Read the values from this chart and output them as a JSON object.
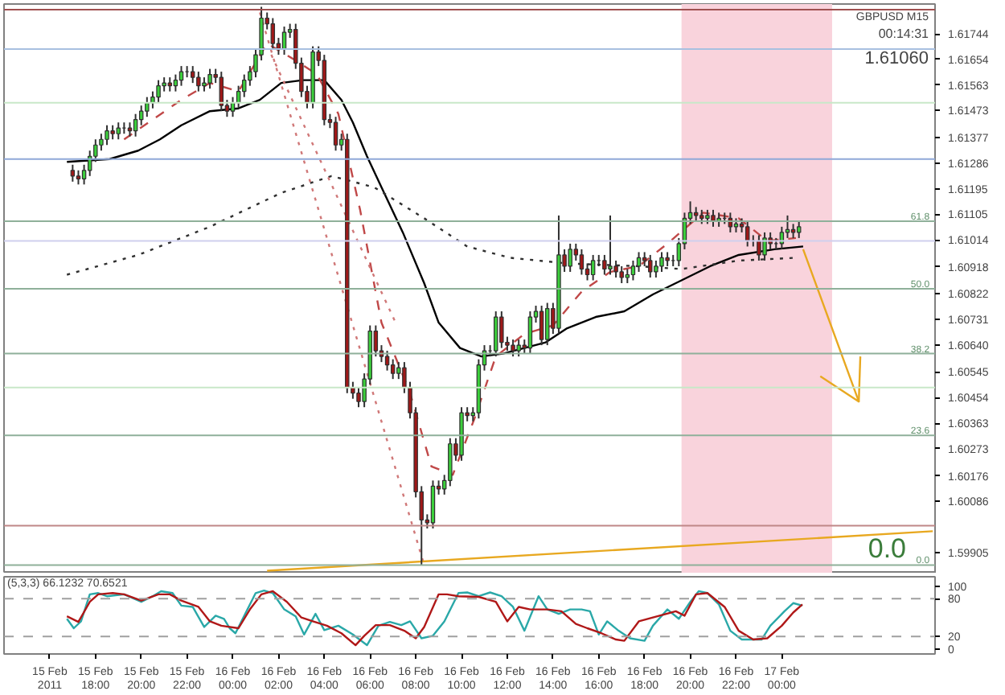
{
  "chart_data": [
    {
      "type": "candlestick",
      "title": "GBPUSD M15",
      "tick_labels": "y",
      "x": [
        "2011-02-15T17:00",
        "2011-02-15T17:15",
        "2011-02-15T17:30",
        "2011-02-15T17:45",
        "2011-02-15T18:00",
        "2011-02-15T18:15",
        "2011-02-15T18:30",
        "2011-02-15T18:45",
        "2011-02-15T19:00",
        "2011-02-15T19:15",
        "2011-02-15T19:30",
        "2011-02-15T19:45",
        "2011-02-15T20:00",
        "2011-02-15T20:15",
        "2011-02-15T20:30",
        "2011-02-15T20:45",
        "2011-02-15T21:00",
        "2011-02-15T21:15",
        "2011-02-15T21:30",
        "2011-02-15T21:45",
        "2011-02-15T22:00",
        "2011-02-15T22:15",
        "2011-02-15T22:30",
        "2011-02-15T22:45",
        "2011-02-15T23:00",
        "2011-02-15T23:15",
        "2011-02-15T23:30",
        "2011-02-15T23:45",
        "2011-02-16T00:00",
        "2011-02-16T00:15",
        "2011-02-16T00:30",
        "2011-02-16T00:45",
        "2011-02-16T01:00",
        "2011-02-16T01:15",
        "2011-02-16T01:30",
        "2011-02-16T01:45",
        "2011-02-16T02:00",
        "2011-02-16T02:15",
        "2011-02-16T02:30",
        "2011-02-16T02:45",
        "2011-02-16T03:00",
        "2011-02-16T03:15",
        "2011-02-16T03:30",
        "2011-02-16T03:45",
        "2011-02-16T04:00",
        "2011-02-16T04:15",
        "2011-02-16T04:30",
        "2011-02-16T04:45",
        "2011-02-16T05:00",
        "2011-02-16T05:15",
        "2011-02-16T05:30",
        "2011-02-16T05:45",
        "2011-02-16T06:00",
        "2011-02-16T06:15",
        "2011-02-16T06:30",
        "2011-02-16T06:45",
        "2011-02-16T07:00",
        "2011-02-16T07:15",
        "2011-02-16T07:30",
        "2011-02-16T07:45",
        "2011-02-16T08:00",
        "2011-02-16T08:15",
        "2011-02-16T08:30",
        "2011-02-16T08:45",
        "2011-02-16T09:00",
        "2011-02-16T09:15",
        "2011-02-16T09:30",
        "2011-02-16T09:45",
        "2011-02-16T10:00",
        "2011-02-16T10:15",
        "2011-02-16T10:30",
        "2011-02-16T10:45",
        "2011-02-16T11:00",
        "2011-02-16T11:15",
        "2011-02-16T11:30",
        "2011-02-16T11:45",
        "2011-02-16T12:00",
        "2011-02-16T12:15",
        "2011-02-16T12:30",
        "2011-02-16T12:45",
        "2011-02-16T13:00",
        "2011-02-16T13:15",
        "2011-02-16T13:30",
        "2011-02-16T13:45",
        "2011-02-16T14:00",
        "2011-02-16T14:15",
        "2011-02-16T14:30",
        "2011-02-16T14:45",
        "2011-02-16T15:00",
        "2011-02-16T15:15",
        "2011-02-16T15:30",
        "2011-02-16T15:45",
        "2011-02-16T16:00",
        "2011-02-16T16:15",
        "2011-02-16T16:30",
        "2011-02-16T16:45",
        "2011-02-16T17:00",
        "2011-02-16T17:15",
        "2011-02-16T17:30",
        "2011-02-16T17:45",
        "2011-02-16T18:00",
        "2011-02-16T18:15",
        "2011-02-16T18:30",
        "2011-02-16T18:45",
        "2011-02-16T19:00",
        "2011-02-16T19:15",
        "2011-02-16T19:30",
        "2011-02-16T19:45",
        "2011-02-16T20:00",
        "2011-02-16T20:15",
        "2011-02-16T20:30",
        "2011-02-16T20:45",
        "2011-02-16T21:00",
        "2011-02-16T21:15",
        "2011-02-16T21:30",
        "2011-02-16T21:45",
        "2011-02-16T22:00",
        "2011-02-16T22:15",
        "2011-02-16T22:30",
        "2011-02-16T22:45",
        "2011-02-16T23:00",
        "2011-02-16T23:15",
        "2011-02-16T23:30",
        "2011-02-16T23:45",
        "2011-02-17T00:00",
        "2011-02-17T00:15",
        "2011-02-17T00:30",
        "2011-02-17T00:45"
      ],
      "ohlc": [
        [
          1.6126,
          1.6128,
          1.6122,
          1.6124
        ],
        [
          1.6124,
          1.6126,
          1.6121,
          1.6123
        ],
        [
          1.6123,
          1.6128,
          1.6121,
          1.6126
        ],
        [
          1.6126,
          1.6133,
          1.6124,
          1.6131
        ],
        [
          1.6131,
          1.6137,
          1.6129,
          1.6135
        ],
        [
          1.6135,
          1.6139,
          1.6133,
          1.6137
        ],
        [
          1.6137,
          1.6142,
          1.6135,
          1.614
        ],
        [
          1.614,
          1.6142,
          1.6137,
          1.6139
        ],
        [
          1.6139,
          1.6143,
          1.6137,
          1.6141
        ],
        [
          1.6141,
          1.6143,
          1.6139,
          1.6141
        ],
        [
          1.6141,
          1.6143,
          1.6138,
          1.614
        ],
        [
          1.614,
          1.6146,
          1.6138,
          1.6144
        ],
        [
          1.6144,
          1.6149,
          1.6142,
          1.6147
        ],
        [
          1.6147,
          1.6152,
          1.6145,
          1.615
        ],
        [
          1.615,
          1.6154,
          1.6148,
          1.6152
        ],
        [
          1.6152,
          1.6158,
          1.615,
          1.6156
        ],
        [
          1.6156,
          1.6159,
          1.6154,
          1.6157
        ],
        [
          1.6157,
          1.6159,
          1.6154,
          1.6156
        ],
        [
          1.6156,
          1.616,
          1.6154,
          1.6158
        ],
        [
          1.6158,
          1.6163,
          1.6156,
          1.6161
        ],
        [
          1.6161,
          1.6163,
          1.6159,
          1.6161
        ],
        [
          1.6161,
          1.6163,
          1.6157,
          1.6159
        ],
        [
          1.6159,
          1.6161,
          1.6154,
          1.6156
        ],
        [
          1.6156,
          1.6159,
          1.6154,
          1.6157
        ],
        [
          1.6157,
          1.6162,
          1.6155,
          1.616
        ],
        [
          1.616,
          1.6162,
          1.6157,
          1.6159
        ],
        [
          1.6159,
          1.6161,
          1.6147,
          1.6149
        ],
        [
          1.6149,
          1.6151,
          1.6145,
          1.6147
        ],
        [
          1.6147,
          1.6152,
          1.6145,
          1.615
        ],
        [
          1.615,
          1.6156,
          1.6148,
          1.6154
        ],
        [
          1.6154,
          1.616,
          1.6152,
          1.6158
        ],
        [
          1.6158,
          1.6163,
          1.6156,
          1.6161
        ],
        [
          1.6161,
          1.6169,
          1.6159,
          1.6167
        ],
        [
          1.6167,
          1.6184,
          1.6165,
          1.618
        ],
        [
          1.618,
          1.6182,
          1.6176,
          1.6178
        ],
        [
          1.6178,
          1.618,
          1.6169,
          1.6171
        ],
        [
          1.6171,
          1.6173,
          1.6167,
          1.6169
        ],
        [
          1.6169,
          1.6177,
          1.6167,
          1.6175
        ],
        [
          1.6175,
          1.6178,
          1.6173,
          1.6176
        ],
        [
          1.6176,
          1.6178,
          1.6162,
          1.6164
        ],
        [
          1.6164,
          1.6166,
          1.6152,
          1.6154
        ],
        [
          1.6154,
          1.6156,
          1.6148,
          1.615
        ],
        [
          1.615,
          1.617,
          1.6148,
          1.6168
        ],
        [
          1.6168,
          1.617,
          1.6163,
          1.6165
        ],
        [
          1.6165,
          1.6167,
          1.6142,
          1.6144
        ],
        [
          1.6144,
          1.6146,
          1.6141,
          1.6143
        ],
        [
          1.6143,
          1.6145,
          1.6133,
          1.6135
        ],
        [
          1.6135,
          1.6139,
          1.6133,
          1.6137
        ],
        [
          1.6137,
          1.6139,
          1.6047,
          1.6049
        ],
        [
          1.6049,
          1.6051,
          1.6045,
          1.6047
        ],
        [
          1.6047,
          1.6049,
          1.6042,
          1.6044
        ],
        [
          1.6044,
          1.6054,
          1.6042,
          1.6052
        ],
        [
          1.6052,
          1.6071,
          1.605,
          1.6069
        ],
        [
          1.6069,
          1.6071,
          1.606,
          1.6062
        ],
        [
          1.6062,
          1.6064,
          1.6058,
          1.606
        ],
        [
          1.606,
          1.6062,
          1.6055,
          1.6057
        ],
        [
          1.6057,
          1.6059,
          1.6052,
          1.6054
        ],
        [
          1.6054,
          1.6058,
          1.6052,
          1.6056
        ],
        [
          1.6056,
          1.6058,
          1.6047,
          1.6049
        ],
        [
          1.6049,
          1.6051,
          1.6038,
          1.604
        ],
        [
          1.604,
          1.6042,
          1.601,
          1.6012
        ],
        [
          1.6012,
          1.6014,
          1.5986,
          1.6002
        ],
        [
          1.6002,
          1.6004,
          1.5999,
          1.6001
        ],
        [
          1.6001,
          1.6016,
          1.5999,
          1.6014
        ],
        [
          1.6014,
          1.6016,
          1.6011,
          1.6013
        ],
        [
          1.6013,
          1.6018,
          1.6011,
          1.6016
        ],
        [
          1.6016,
          1.6031,
          1.6014,
          1.6029
        ],
        [
          1.6029,
          1.6031,
          1.6023,
          1.6025
        ],
        [
          1.6025,
          1.6042,
          1.6023,
          1.604
        ],
        [
          1.604,
          1.6042,
          1.6037,
          1.6039
        ],
        [
          1.6039,
          1.6042,
          1.6037,
          1.604
        ],
        [
          1.604,
          1.6059,
          1.6038,
          1.6057
        ],
        [
          1.6057,
          1.6064,
          1.6055,
          1.6062
        ],
        [
          1.6062,
          1.6064,
          1.606,
          1.6062
        ],
        [
          1.6062,
          1.6076,
          1.606,
          1.6074
        ],
        [
          1.6074,
          1.6076,
          1.6063,
          1.6065
        ],
        [
          1.6065,
          1.6067,
          1.6062,
          1.6064
        ],
        [
          1.6064,
          1.6066,
          1.606,
          1.6062
        ],
        [
          1.6062,
          1.6066,
          1.606,
          1.6064
        ],
        [
          1.6064,
          1.6066,
          1.6061,
          1.6063
        ],
        [
          1.6063,
          1.6076,
          1.6061,
          1.6074
        ],
        [
          1.6074,
          1.6078,
          1.6072,
          1.6076
        ],
        [
          1.6076,
          1.6078,
          1.6064,
          1.6066
        ],
        [
          1.6066,
          1.6079,
          1.6064,
          1.6077
        ],
        [
          1.6077,
          1.6079,
          1.6068,
          1.607
        ],
        [
          1.607,
          1.611,
          1.6068,
          1.6096
        ],
        [
          1.6096,
          1.6098,
          1.609,
          1.6092
        ],
        [
          1.6092,
          1.61,
          1.609,
          1.6098
        ],
        [
          1.6098,
          1.61,
          1.6094,
          1.6096
        ],
        [
          1.6096,
          1.6098,
          1.6089,
          1.6091
        ],
        [
          1.6091,
          1.6093,
          1.6087,
          1.6089
        ],
        [
          1.6089,
          1.6096,
          1.6087,
          1.6094
        ],
        [
          1.6094,
          1.6096,
          1.6092,
          1.6094
        ],
        [
          1.6094,
          1.6096,
          1.6089,
          1.6091
        ],
        [
          1.6091,
          1.611,
          1.6089,
          1.6092
        ],
        [
          1.6092,
          1.6094,
          1.6088,
          1.609
        ],
        [
          1.609,
          1.6092,
          1.6086,
          1.6088
        ],
        [
          1.6088,
          1.6091,
          1.6086,
          1.6089
        ],
        [
          1.6089,
          1.6094,
          1.6087,
          1.6092
        ],
        [
          1.6092,
          1.6097,
          1.609,
          1.6095
        ],
        [
          1.6095,
          1.6097,
          1.6092,
          1.6094
        ],
        [
          1.6094,
          1.6096,
          1.6088,
          1.609
        ],
        [
          1.609,
          1.6094,
          1.6088,
          1.6092
        ],
        [
          1.6092,
          1.6097,
          1.609,
          1.6095
        ],
        [
          1.6095,
          1.6097,
          1.6092,
          1.6094
        ],
        [
          1.6094,
          1.6096,
          1.6092,
          1.6094
        ],
        [
          1.6094,
          1.6102,
          1.6092,
          1.61
        ],
        [
          1.61,
          1.6111,
          1.6098,
          1.6109
        ],
        [
          1.6109,
          1.6115,
          1.6107,
          1.6111
        ],
        [
          1.6111,
          1.6113,
          1.6108,
          1.611
        ],
        [
          1.611,
          1.6112,
          1.6107,
          1.6109
        ],
        [
          1.6109,
          1.6112,
          1.6107,
          1.611
        ],
        [
          1.611,
          1.6112,
          1.6106,
          1.6108
        ],
        [
          1.6108,
          1.6111,
          1.6106,
          1.6109
        ],
        [
          1.6109,
          1.6111,
          1.6107,
          1.6109
        ],
        [
          1.6109,
          1.6111,
          1.6104,
          1.6106
        ],
        [
          1.6106,
          1.6109,
          1.6104,
          1.6107
        ],
        [
          1.6107,
          1.6109,
          1.6104,
          1.6106
        ],
        [
          1.6106,
          1.6108,
          1.6099,
          1.6101
        ],
        [
          1.6101,
          1.6103,
          1.6099,
          1.6101
        ],
        [
          1.6101,
          1.6103,
          1.6094,
          1.6096
        ],
        [
          1.6096,
          1.6104,
          1.6094,
          1.6102
        ],
        [
          1.6102,
          1.6104,
          1.6098,
          1.61
        ],
        [
          1.61,
          1.6102,
          1.6098,
          1.61
        ],
        [
          1.61,
          1.6106,
          1.6098,
          1.6104
        ],
        [
          1.6104,
          1.611,
          1.6102,
          1.6105
        ],
        [
          1.6105,
          1.6107,
          1.6102,
          1.6104
        ],
        [
          1.6104,
          1.6108,
          1.6102,
          1.6106
        ]
      ],
      "series": [
        {
          "type": "line",
          "color": "#000000",
          "line_style": "solid",
          "x": [
            "2011-02-15T16:45",
            "2011-02-15T18:37",
            "2011-02-15T19:52",
            "2011-02-15T20:49",
            "2011-02-15T21:45",
            "2011-02-15T23:00",
            "2011-02-16T00:15",
            "2011-02-16T01:11",
            "2011-02-16T02:07",
            "2011-02-16T03:04",
            "2011-02-16T04:00",
            "2011-02-16T04:45",
            "2011-02-16T05:15",
            "2011-02-16T05:52",
            "2011-02-16T06:30",
            "2011-02-16T07:26",
            "2011-02-16T08:22",
            "2011-02-16T09:00",
            "2011-02-16T09:56",
            "2011-02-16T10:52",
            "2011-02-16T11:49",
            "2011-02-16T12:45",
            "2011-02-16T13:41",
            "2011-02-16T14:37",
            "2011-02-16T15:52",
            "2011-02-16T17:07",
            "2011-02-16T18:22",
            "2011-02-16T19:37",
            "2011-02-16T20:52",
            "2011-02-16T22:07",
            "2011-02-16T23:41",
            "2011-02-17T00:56"
          ],
          "values": [
            1.6129,
            1.613,
            1.6133,
            1.6137,
            1.6142,
            1.6147,
            1.6148,
            1.6151,
            1.6157,
            1.6158,
            1.6158,
            1.6151,
            1.6143,
            1.6131,
            1.612,
            1.6104,
            1.6086,
            1.6072,
            1.6063,
            1.606,
            1.6061,
            1.6063,
            1.6065,
            1.607,
            1.6074,
            1.6076,
            1.6082,
            1.6087,
            1.6092,
            1.6096,
            1.6098,
            1.6099
          ]
        },
        {
          "type": "line",
          "color": "#303030",
          "line_style": "dotted",
          "x": [
            "2011-02-15T16:45",
            "2011-02-15T19:52",
            "2011-02-15T23:00",
            "2011-02-16T02:07",
            "2011-02-16T04:19",
            "2011-02-16T06:11",
            "2011-02-16T08:22",
            "2011-02-16T10:15",
            "2011-02-16T12:07",
            "2011-02-16T14:37",
            "2011-02-16T17:45",
            "2011-02-16T19:37",
            "2011-02-16T22:07",
            "2011-02-17T00:37"
          ],
          "values": [
            1.6089,
            1.6096,
            1.6106,
            1.6118,
            1.6124,
            1.612,
            1.6109,
            1.6099,
            1.6095,
            1.6093,
            1.6092,
            1.6091,
            1.6094,
            1.6095
          ]
        },
        {
          "type": "line",
          "color": "#c04848",
          "line_style": "dashed",
          "x": [
            "2011-02-15T19:15",
            "2011-02-15T21:45",
            "2011-02-15T23:00",
            "2011-02-16T00:15",
            "2011-02-16T01:30",
            "2011-02-16T02:45",
            "2011-02-16T03:41",
            "2011-02-16T04:37",
            "2011-02-16T05:34",
            "2011-02-16T06:30",
            "2011-02-16T07:45",
            "2011-02-16T08:41",
            "2011-02-16T09:37",
            "2011-02-16T10:34",
            "2011-02-16T11:30",
            "2011-02-16T12:45",
            "2011-02-16T14:00",
            "2011-02-16T15:15",
            "2011-02-16T16:30",
            "2011-02-16T17:45",
            "2011-02-16T19:00",
            "2011-02-16T20:34",
            "2011-02-16T22:07",
            "2011-02-16T23:22",
            "2011-02-17T00:37"
          ],
          "values": [
            1.6137,
            1.6151,
            1.6157,
            1.6154,
            1.6171,
            1.6165,
            1.616,
            1.6146,
            1.6112,
            1.6072,
            1.6047,
            1.6021,
            1.6018,
            1.6038,
            1.606,
            1.6068,
            1.6071,
            1.6083,
            1.609,
            1.6092,
            1.61,
            1.6111,
            1.6109,
            1.6101,
            1.6102
          ]
        },
        {
          "type": "line",
          "color": "#d07878",
          "line_style": "dotted",
          "x": [
            "2011-02-16T01:11",
            "2011-02-16T08:22"
          ],
          "values": [
            1.6182,
            1.5986
          ]
        },
        {
          "type": "line",
          "color": "#d07878",
          "line_style": "dotted",
          "x": [
            "2011-02-16T01:41",
            "2011-02-16T07:07"
          ],
          "values": [
            1.6167,
            1.6072
          ]
        },
        {
          "type": "line",
          "color": "#e8a820",
          "line_style": "solid",
          "x": [
            "2011-02-16T01:30",
            "2011-02-17T06:36"
          ],
          "values": [
            1.5984,
            1.5998
          ]
        },
        {
          "type": "line",
          "color": "#e8a820",
          "line_style": "solid",
          "x": [
            "2011-02-17T00:56",
            "2011-02-17T03:22",
            "2011-02-17T01:41"
          ],
          "values": [
            1.6098,
            1.6044,
            1.6053
          ]
        },
        {
          "type": "line",
          "color": "#e8a820",
          "line_style": "solid",
          "x": [
            "2011-02-17T03:22",
            "2011-02-17T03:26"
          ],
          "values": [
            1.6044,
            1.606
          ]
        }
      ],
      "bands": [
        {
          "axis": "x",
          "from": "2011-02-16T19:37",
          "to": "2011-02-17T02:12",
          "color": "#f9d3dc"
        }
      ],
      "ref_lines": [
        {
          "axis": "y",
          "value": 1.6183,
          "color": "#a05050"
        },
        {
          "axis": "y",
          "value": 1.6169,
          "color": "#a8c0e0"
        },
        {
          "axis": "y",
          "value": 1.615,
          "color": "#c8e8c8"
        },
        {
          "axis": "y",
          "value": 1.613,
          "color": "#8fa8d8"
        },
        {
          "axis": "y",
          "value": 1.6108,
          "color": "#8fb09a"
        },
        {
          "axis": "y",
          "value": 1.6101,
          "color": "#d0d0ee"
        },
        {
          "axis": "y",
          "value": 1.6084,
          "color": "#8fb09a"
        },
        {
          "axis": "y",
          "value": 1.6061,
          "color": "#8fb09a"
        },
        {
          "axis": "y",
          "value": 1.6049,
          "color": "#c8e8c8"
        },
        {
          "axis": "y",
          "value": 1.6032,
          "color": "#8fb09a"
        },
        {
          "axis": "y",
          "value": 1.6,
          "color": "#c08888"
        },
        {
          "axis": "y",
          "value": 1.5986,
          "color": "#8fb09a"
        }
      ],
      "annotations": [
        "00:14:31",
        "1.61060",
        "0.0",
        {
          "text": "61.8",
          "x": "2011-02-17T06:36",
          "y": 1.6108
        },
        {
          "text": "50.0",
          "x": "2011-02-17T06:36",
          "y": 1.6084
        },
        {
          "text": "38.2",
          "x": "2011-02-17T06:36",
          "y": 1.6061
        },
        {
          "text": "23.6",
          "x": "2011-02-17T06:36",
          "y": 1.6032
        },
        {
          "text": "0.0",
          "x": "2011-02-17T06:36",
          "y": 1.5986
        }
      ],
      "xlim": [
        "2011-02-15T14:00",
        "2011-02-17T06:42"
      ],
      "ylim": [
        1.5983,
        1.6185
      ],
      "yticks": [
        1.61744,
        1.61654,
        1.61563,
        1.61473,
        1.61377,
        1.61286,
        1.61195,
        1.61105,
        1.61014,
        1.60918,
        1.60822,
        1.60731,
        {
          "value": 1.6064,
          "label": "1.60640"
        },
        1.60545,
        1.60454,
        1.60363,
        1.60273,
        1.60176,
        1.60086,
        1.59905
      ]
    },
    {
      "type": "line",
      "title": "(5,3,3) 66.1232 70.6521",
      "xlim": [
        "2011-02-15T14:00",
        "2011-02-17T06:42"
      ],
      "ylim": [
        -8,
        115
      ],
      "yticks": [
        0,
        20,
        80,
        100
      ],
      "xticks": [
        {
          "value": "2011-02-15T16:00",
          "label": "15 Feb 2011"
        },
        {
          "value": "2011-02-15T18:00",
          "label": "15 Feb 18:00"
        },
        {
          "value": "2011-02-15T20:00",
          "label": "15 Feb 20:00"
        },
        {
          "value": "2011-02-15T22:00",
          "label": "15 Feb 22:00"
        },
        {
          "value": "2011-02-16T00:00",
          "label": "16 Feb 00:00"
        },
        {
          "value": "2011-02-16T02:00",
          "label": "16 Feb 02:00"
        },
        {
          "value": "2011-02-16T04:00",
          "label": "16 Feb 04:00"
        },
        {
          "value": "2011-02-16T06:00",
          "label": "16 Feb 06:00"
        },
        {
          "value": "2011-02-16T08:00",
          "label": "16 Feb 08:00"
        },
        {
          "value": "2011-02-16T10:00",
          "label": "16 Feb 10:00"
        },
        {
          "value": "2011-02-16T12:00",
          "label": "16 Feb 12:00"
        },
        {
          "value": "2011-02-16T14:00",
          "label": "16 Feb 14:00"
        },
        {
          "value": "2011-02-16T16:00",
          "label": "16 Feb 16:00"
        },
        {
          "value": "2011-02-16T18:00",
          "label": "16 Feb 18:00"
        },
        {
          "value": "2011-02-16T20:00",
          "label": "16 Feb 20:00"
        },
        {
          "value": "2011-02-16T22:00",
          "label": "16 Feb 22:00"
        },
        {
          "value": "2011-02-17T00:00",
          "label": "17 Feb 00:00"
        }
      ],
      "ref_lines": [
        {
          "axis": "y",
          "value": 80,
          "color": "#a0a0a0",
          "line_style": "dashed"
        },
        {
          "axis": "y",
          "value": 20,
          "color": "#a0a0a0",
          "line_style": "dashed"
        }
      ],
      "series": [
        {
          "color": "#2aa8a8",
          "x": [
            "2011-02-15T16:45",
            "2011-02-15T17:03",
            "2011-02-15T17:22",
            "2011-02-15T17:45",
            "2011-02-15T18:07",
            "2011-02-15T18:30",
            "2011-02-15T19:15",
            "2011-02-15T20:00",
            "2011-02-15T20:30",
            "2011-02-15T20:52",
            "2011-02-15T21:22",
            "2011-02-15T21:45",
            "2011-02-15T22:15",
            "2011-02-15T22:45",
            "2011-02-15T23:15",
            "2011-02-15T23:37",
            "2011-02-15T23:52",
            "2011-02-16T00:07",
            "2011-02-16T01:00",
            "2011-02-16T01:22",
            "2011-02-16T01:45",
            "2011-02-16T02:15",
            "2011-02-16T02:45",
            "2011-02-16T03:07",
            "2011-02-16T03:37",
            "2011-02-16T04:00",
            "2011-02-16T04:37",
            "2011-02-16T05:15",
            "2011-02-16T05:52",
            "2011-02-16T06:22",
            "2011-02-16T06:52",
            "2011-02-16T07:22",
            "2011-02-16T07:45",
            "2011-02-16T08:15",
            "2011-02-16T08:45",
            "2011-02-16T09:15",
            "2011-02-16T09:52",
            "2011-02-16T10:15",
            "2011-02-16T10:45",
            "2011-02-16T11:15",
            "2011-02-16T11:45",
            "2011-02-16T12:15",
            "2011-02-16T12:45",
            "2011-02-16T13:22",
            "2011-02-16T13:45",
            "2011-02-16T14:15",
            "2011-02-16T14:45",
            "2011-02-16T15:15",
            "2011-02-16T15:37",
            "2011-02-16T16:00",
            "2011-02-16T16:22",
            "2011-02-16T16:52",
            "2011-02-16T17:22",
            "2011-02-16T18:00",
            "2011-02-16T18:22",
            "2011-02-16T19:00",
            "2011-02-16T19:30",
            "2011-02-16T20:00",
            "2011-02-16T20:22",
            "2011-02-16T20:45",
            "2011-02-16T21:15",
            "2011-02-16T21:45",
            "2011-02-16T22:15",
            "2011-02-16T22:45",
            "2011-02-16T23:07",
            "2011-02-16T23:30",
            "2011-02-17T00:07",
            "2011-02-17T00:30",
            "2011-02-17T00:54"
          ],
          "values": [
            48,
            33,
            44,
            87,
            89,
            84,
            87,
            75,
            84,
            92,
            89,
            69,
            67,
            35,
            53,
            48,
            33,
            25,
            89,
            93,
            89,
            63,
            52,
            23,
            56,
            30,
            37,
            23,
            6,
            37,
            43,
            38,
            44,
            17,
            21,
            44,
            89,
            90,
            84,
            90,
            84,
            67,
            29,
            84,
            63,
            56,
            63,
            63,
            60,
            23,
            44,
            29,
            17,
            13,
            37,
            63,
            48,
            75,
            92,
            89,
            71,
            29,
            15,
            15,
            15,
            37,
            60,
            73,
            69
          ]
        },
        {
          "color": "#b01818",
          "x": [
            "2011-02-15T16:45",
            "2011-02-15T17:15",
            "2011-02-15T17:45",
            "2011-02-15T18:07",
            "2011-02-15T18:45",
            "2011-02-15T19:15",
            "2011-02-15T20:00",
            "2011-02-15T20:45",
            "2011-02-15T21:15",
            "2011-02-15T21:45",
            "2011-02-15T22:30",
            "2011-02-15T23:00",
            "2011-02-15T23:30",
            "2011-02-16T00:15",
            "2011-02-16T00:45",
            "2011-02-16T01:15",
            "2011-02-16T01:45",
            "2011-02-16T02:22",
            "2011-02-16T03:00",
            "2011-02-16T03:30",
            "2011-02-16T04:07",
            "2011-02-16T04:45",
            "2011-02-16T05:22",
            "2011-02-16T05:45",
            "2011-02-16T06:15",
            "2011-02-16T06:52",
            "2011-02-16T07:30",
            "2011-02-16T08:00",
            "2011-02-16T08:22",
            "2011-02-16T09:00",
            "2011-02-16T09:22",
            "2011-02-16T09:52",
            "2011-02-16T10:45",
            "2011-02-16T11:30",
            "2011-02-16T12:00",
            "2011-02-16T12:30",
            "2011-02-16T13:00",
            "2011-02-16T13:45",
            "2011-02-16T14:22",
            "2011-02-16T15:00",
            "2011-02-16T15:30",
            "2011-02-16T16:07",
            "2011-02-16T16:45",
            "2011-02-16T17:07",
            "2011-02-16T17:45",
            "2011-02-16T19:22",
            "2011-02-16T19:45",
            "2011-02-16T20:15",
            "2011-02-16T20:45",
            "2011-02-16T21:30",
            "2011-02-16T22:07",
            "2011-02-16T22:45",
            "2011-02-16T23:22",
            "2011-02-17T00:00",
            "2011-02-17T00:30",
            "2011-02-17T00:54"
          ],
          "values": [
            52,
            43,
            75,
            87,
            89,
            87,
            77,
            87,
            87,
            77,
            67,
            44,
            37,
            33,
            63,
            87,
            92,
            75,
            50,
            44,
            37,
            25,
            6,
            21,
            38,
            38,
            29,
            17,
            35,
            87,
            87,
            84,
            83,
            75,
            44,
            67,
            63,
            63,
            60,
            40,
            33,
            25,
            15,
            13,
            44,
            60,
            53,
            87,
            89,
            67,
            29,
            15,
            17,
            37,
            58,
            71
          ]
        }
      ]
    }
  ]
}
